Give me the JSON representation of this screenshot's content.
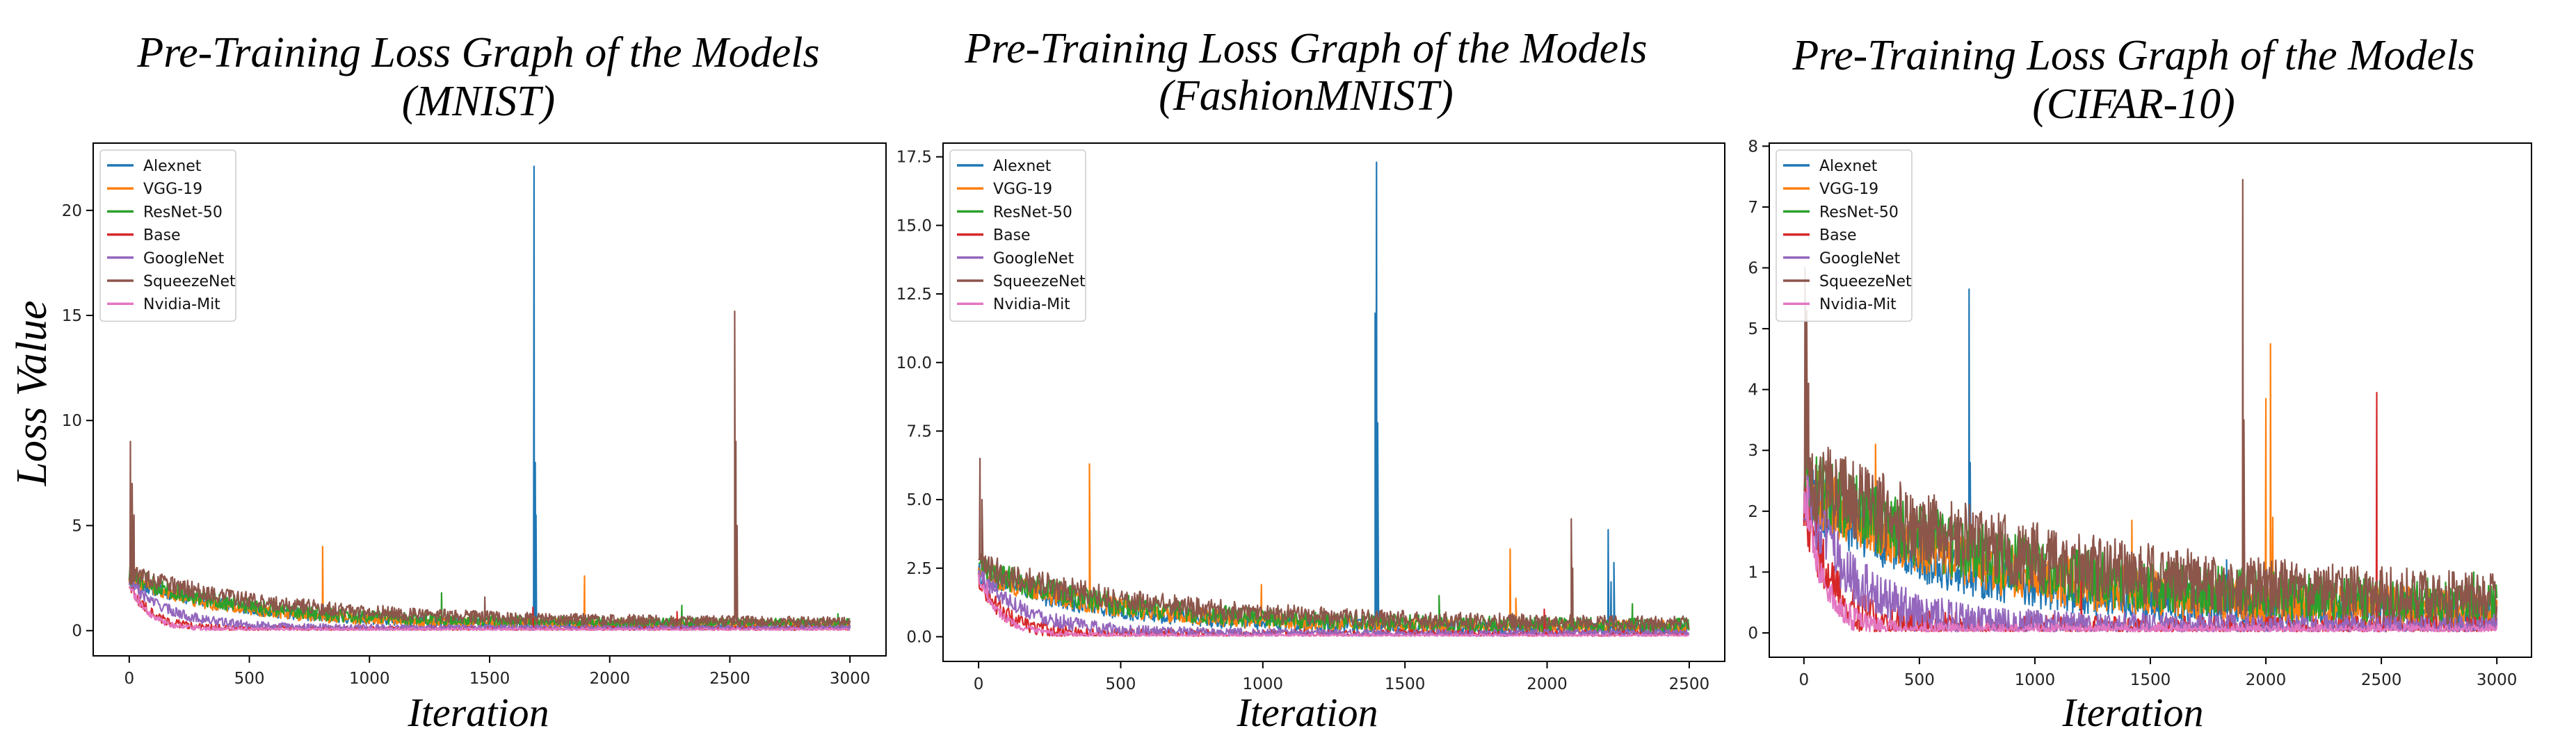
{
  "colors": [
    "#1f77b4",
    "#ff7f0e",
    "#2ca02c",
    "#d62728",
    "#9467bd",
    "#8c564b",
    "#e377c2"
  ],
  "chart_data": [
    {
      "type": "line",
      "title_line1": "Pre-Training Loss Graph of the Models",
      "title_line2": "(MNIST)",
      "xlabel": "Iteration",
      "ylabel": "Loss Value",
      "xlim": [
        -150,
        3150
      ],
      "ylim": [
        -1.2,
        23.2
      ],
      "xticks": [
        0,
        500,
        1000,
        1500,
        2000,
        2500,
        3000
      ],
      "yticks": [
        0,
        5,
        10,
        15,
        20
      ],
      "grid": false,
      "legend_position": "top-left",
      "series": [
        {
          "name": "Alexnet",
          "spikes": [
            [
              1685,
              22.1
            ],
            [
              1690,
              8.0
            ],
            [
              1693,
              5.5
            ]
          ]
        },
        {
          "name": "VGG-19",
          "spikes": [
            [
              805,
              4.0
            ],
            [
              1895,
              2.6
            ],
            [
              30,
              3.0
            ]
          ]
        },
        {
          "name": "ResNet-50",
          "spikes": [
            [
              1300,
              1.8
            ],
            [
              2300,
              1.2
            ],
            [
              2950,
              0.8
            ]
          ]
        },
        {
          "name": "Base",
          "spikes": [
            [
              1680,
              1.1
            ],
            [
              2280,
              0.9
            ]
          ]
        },
        {
          "name": "GoogleNet",
          "spikes": [
            [
              40,
              2.2
            ]
          ]
        },
        {
          "name": "SqueezeNet",
          "spikes": [
            [
              5,
              9.0
            ],
            [
              12,
              7.0
            ],
            [
              20,
              5.5
            ],
            [
              2520,
              15.2
            ],
            [
              2525,
              9.0
            ],
            [
              2530,
              5.0
            ],
            [
              1480,
              1.6
            ]
          ]
        },
        {
          "name": "Nvidia-Mit",
          "spikes": [
            [
              40,
              1.7
            ]
          ]
        }
      ]
    },
    {
      "type": "line",
      "title_line1": "Pre-Training Loss Graph of the Models",
      "title_line2": "(FashionMNIST)",
      "xlabel": "Iteration",
      "xlim": [
        -125,
        2625
      ],
      "ylim": [
        -0.9,
        18.0
      ],
      "xticks": [
        0,
        500,
        1000,
        1500,
        2000,
        2500
      ],
      "yticks": [
        0.0,
        2.5,
        5.0,
        7.5,
        10.0,
        12.5,
        15.0,
        17.5
      ],
      "grid": false,
      "legend_position": "top-left",
      "series": [
        {
          "name": "Alexnet",
          "spikes": [
            [
              1400,
              17.3
            ],
            [
              1395,
              11.8
            ],
            [
              1404,
              7.8
            ],
            [
              2215,
              3.9
            ],
            [
              2235,
              2.7
            ],
            [
              2225,
              2.0
            ]
          ]
        },
        {
          "name": "VGG-19",
          "spikes": [
            [
              390,
              6.3
            ],
            [
              1870,
              3.2
            ],
            [
              995,
              1.9
            ],
            [
              1890,
              1.4
            ]
          ]
        },
        {
          "name": "ResNet-50",
          "spikes": [
            [
              1620,
              1.5
            ],
            [
              2300,
              1.2
            ]
          ]
        },
        {
          "name": "Base",
          "spikes": [
            [
              1990,
              1.0
            ]
          ]
        },
        {
          "name": "GoogleNet",
          "spikes": [
            [
              60,
              2.0
            ]
          ]
        },
        {
          "name": "SqueezeNet",
          "spikes": [
            [
              5,
              6.5
            ],
            [
              12,
              5.0
            ],
            [
              2085,
              4.3
            ],
            [
              2090,
              2.5
            ]
          ]
        },
        {
          "name": "Nvidia-Mit",
          "spikes": [
            [
              30,
              2.0
            ]
          ]
        }
      ]
    },
    {
      "type": "line",
      "title_line1": "Pre-Training Loss Graph of the Models",
      "title_line2": "(CIFAR-10)",
      "xlabel": "Iteration",
      "xlim": [
        -150,
        3150
      ],
      "ylim": [
        -0.4,
        8.05
      ],
      "xticks": [
        0,
        500,
        1000,
        1500,
        2000,
        2500,
        3000
      ],
      "yticks": [
        0,
        1,
        2,
        3,
        4,
        5,
        6,
        7,
        8
      ],
      "grid": false,
      "legend_position": "top-left",
      "series": [
        {
          "name": "Alexnet",
          "spikes": [
            [
              715,
              5.65
            ],
            [
              720,
              2.8
            ],
            [
              1830,
              1.2
            ]
          ]
        },
        {
          "name": "VGG-19",
          "spikes": [
            [
              2020,
              4.75
            ],
            [
              2000,
              3.85
            ],
            [
              310,
              3.1
            ],
            [
              1420,
              1.85
            ],
            [
              2030,
              1.9
            ]
          ]
        },
        {
          "name": "ResNet-50",
          "spikes": [
            [
              2900,
              1.0
            ],
            [
              2700,
              0.9
            ],
            [
              2200,
              0.8
            ]
          ]
        },
        {
          "name": "Base",
          "spikes": [
            [
              2480,
              3.95
            ],
            [
              1200,
              0.9
            ]
          ]
        },
        {
          "name": "GoogleNet",
          "spikes": [
            [
              30,
              2.6
            ]
          ]
        },
        {
          "name": "SqueezeNet",
          "spikes": [
            [
              1900,
              7.45
            ],
            [
              1905,
              3.5
            ],
            [
              5,
              6.0
            ],
            [
              12,
              5.3
            ],
            [
              20,
              4.1
            ],
            [
              1160,
              1.4
            ]
          ]
        },
        {
          "name": "Nvidia-Mit",
          "spikes": [
            [
              15,
              2.5
            ]
          ]
        }
      ]
    }
  ]
}
